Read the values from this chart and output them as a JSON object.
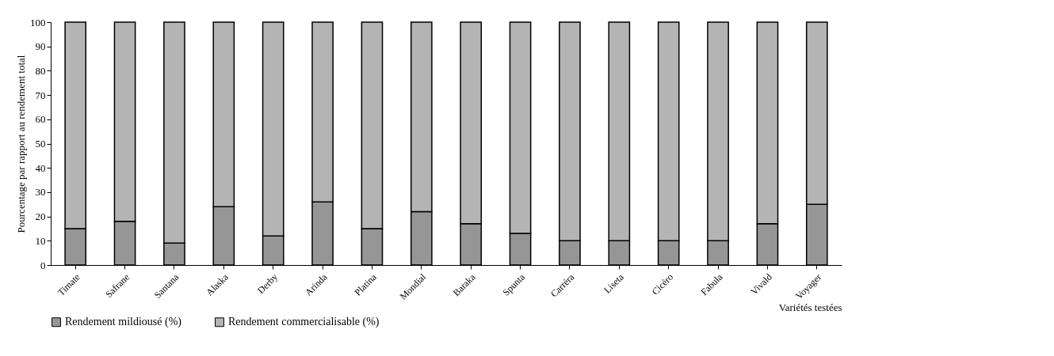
{
  "chart_data": {
    "type": "bar",
    "stacked": true,
    "xlabel": "Variétés testées",
    "ylabel": "Pourcentage par rapport au rendement total",
    "categories": [
      "Timate",
      "Safrane",
      "Santana",
      "Alaska",
      "Derby",
      "Arinda",
      "Platina",
      "Mondial",
      "Baraka",
      "Spunta",
      "Carréra",
      "Liseta",
      "Cicéro",
      "Fabula",
      "Vivald",
      "Voyager"
    ],
    "series": [
      {
        "name": "Rendement mildiousé (%)",
        "color": "#969696",
        "values": [
          15,
          18,
          9,
          24,
          12,
          26,
          15,
          22,
          17,
          13,
          10,
          10,
          10,
          10,
          17,
          25
        ]
      },
      {
        "name": "Rendement commercialisable (%)",
        "color": "#b4b4b4",
        "values": [
          85,
          82,
          91,
          76,
          88,
          74,
          85,
          78,
          83,
          87,
          90,
          90,
          90,
          90,
          83,
          75
        ]
      }
    ],
    "ylim": [
      0,
      100
    ],
    "yticks": [
      0,
      10,
      20,
      30,
      40,
      50,
      60,
      70,
      80,
      90,
      100
    ],
    "grid": false,
    "legend": "bottom"
  }
}
